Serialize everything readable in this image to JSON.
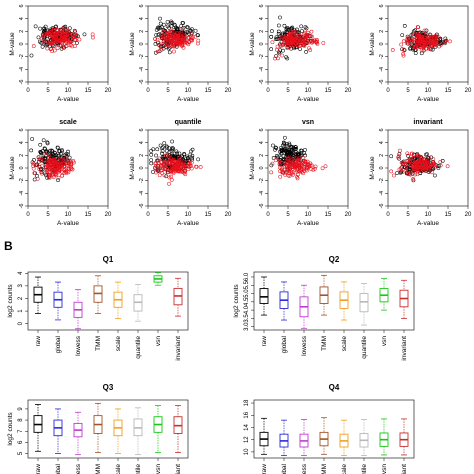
{
  "panel_b_label": "B",
  "colors": {
    "black": "#000000",
    "red": "#e8101c",
    "blue": "#2a2ad8",
    "magenta": "#c03cd0",
    "brown": "#a0542a",
    "orange": "#f0a020",
    "lightgray": "#b8b8b8",
    "green": "#18c818",
    "darkred": "#c83030"
  },
  "chart_data": [
    {
      "type": "scatter",
      "panel": 1,
      "title": "",
      "xlabel": "A-value",
      "ylabel": "M-value",
      "xlim": [
        0,
        20
      ],
      "ylim": [
        -6,
        6
      ],
      "xticks": [
        "0",
        "5",
        "10",
        "15",
        "20"
      ],
      "yticks": [
        "-6",
        "-4",
        "-2",
        "0",
        "2",
        "4",
        "6"
      ],
      "series": [
        {
          "color": "black",
          "center_x": 7,
          "spread_x": 4,
          "center_y": 1.2,
          "spread_y": 1.6
        },
        {
          "color": "red",
          "center_x": 8,
          "spread_x": 4,
          "center_y": 1.0,
          "spread_y": 1.4
        }
      ]
    },
    {
      "type": "scatter",
      "panel": 2,
      "title": "",
      "xlabel": "A-value",
      "ylabel": "M-value",
      "xlim": [
        0,
        20
      ],
      "ylim": [
        -6,
        6
      ],
      "xticks": [
        "0",
        "5",
        "10",
        "15",
        "20"
      ],
      "yticks": [
        "-6",
        "-4",
        "-2",
        "0",
        "2",
        "4",
        "6"
      ],
      "series": [
        {
          "color": "black",
          "center_x": 6,
          "spread_x": 4,
          "center_y": 1.5,
          "spread_y": 1.8
        },
        {
          "color": "red",
          "center_x": 7,
          "spread_x": 4,
          "center_y": 0.6,
          "spread_y": 1.4
        }
      ]
    },
    {
      "type": "scatter",
      "panel": 3,
      "title": "",
      "xlabel": "A-value",
      "ylabel": "M-value",
      "xlim": [
        0,
        20
      ],
      "ylim": [
        -6,
        6
      ],
      "xticks": [
        "0",
        "5",
        "10",
        "15",
        "20"
      ],
      "yticks": [
        "-6",
        "-4",
        "-2",
        "0",
        "2",
        "4",
        "6"
      ],
      "series": [
        {
          "color": "black",
          "center_x": 6,
          "spread_x": 4,
          "center_y": 1.0,
          "spread_y": 1.8
        },
        {
          "color": "red",
          "center_x": 7,
          "spread_x": 4,
          "center_y": 0.5,
          "spread_y": 1.4
        }
      ]
    },
    {
      "type": "scatter",
      "panel": 4,
      "title": "",
      "xlabel": "A-value",
      "ylabel": "M-value",
      "xlim": [
        0,
        20
      ],
      "ylim": [
        -6,
        6
      ],
      "xticks": [
        "0",
        "5",
        "10",
        "15",
        "20"
      ],
      "yticks": [
        "-6",
        "-4",
        "-2",
        "0",
        "2",
        "4",
        "6"
      ],
      "series": [
        {
          "color": "black",
          "center_x": 9,
          "spread_x": 4,
          "center_y": 0.5,
          "spread_y": 1.5
        },
        {
          "color": "red",
          "center_x": 9,
          "spread_x": 4,
          "center_y": 0.5,
          "spread_y": 1.5
        }
      ]
    },
    {
      "type": "scatter",
      "panel": 5,
      "title": "scale",
      "xlabel": "A-value",
      "ylabel": "M-value",
      "xlim": [
        0,
        20
      ],
      "ylim": [
        -6,
        6
      ],
      "xticks": [
        "0",
        "5",
        "10",
        "15",
        "20"
      ],
      "yticks": [
        "-6",
        "-4",
        "-2",
        "0",
        "2",
        "4",
        "6"
      ],
      "series": [
        {
          "color": "black",
          "center_x": 6,
          "spread_x": 4,
          "center_y": 1.5,
          "spread_y": 1.8
        },
        {
          "color": "red",
          "center_x": 7,
          "spread_x": 4,
          "center_y": 0.2,
          "spread_y": 1.4
        }
      ]
    },
    {
      "type": "scatter",
      "panel": 6,
      "title": "quantile",
      "xlabel": "A-value",
      "ylabel": "M-value",
      "xlim": [
        0,
        20
      ],
      "ylim": [
        -6,
        6
      ],
      "xticks": [
        "0",
        "5",
        "10",
        "15",
        "20"
      ],
      "yticks": [
        "-6",
        "-4",
        "-2",
        "0",
        "2",
        "4",
        "6"
      ],
      "series": [
        {
          "color": "black",
          "center_x": 6,
          "spread_x": 4,
          "center_y": 1.5,
          "spread_y": 1.8
        },
        {
          "color": "red",
          "center_x": 7,
          "spread_x": 4,
          "center_y": 0.2,
          "spread_y": 1.3
        }
      ]
    },
    {
      "type": "scatter",
      "panel": 7,
      "title": "vsn",
      "xlabel": "A-value",
      "ylabel": "M-value",
      "xlim": [
        0,
        20
      ],
      "ylim": [
        -6,
        6
      ],
      "xticks": [
        "0",
        "5",
        "10",
        "15",
        "20"
      ],
      "yticks": [
        "-6",
        "-4",
        "-2",
        "0",
        "2",
        "4",
        "6"
      ],
      "series": [
        {
          "color": "black",
          "center_x": 5,
          "spread_x": 3,
          "center_y": 2.0,
          "spread_y": 1.6
        },
        {
          "color": "red",
          "center_x": 7,
          "spread_x": 4,
          "center_y": 0.2,
          "spread_y": 1.2
        }
      ]
    },
    {
      "type": "scatter",
      "panel": 8,
      "title": "invariant",
      "xlabel": "A-value",
      "ylabel": "M-value",
      "xlim": [
        0,
        20
      ],
      "ylim": [
        -6,
        6
      ],
      "xticks": [
        "0",
        "5",
        "10",
        "15",
        "20"
      ],
      "yticks": [
        "-6",
        "-4",
        "-2",
        "0",
        "2",
        "4",
        "6"
      ],
      "series": [
        {
          "color": "black",
          "center_x": 8,
          "spread_x": 4,
          "center_y": 0.5,
          "spread_y": 1.5
        },
        {
          "color": "red",
          "center_x": 8,
          "spread_x": 4,
          "center_y": 0.5,
          "spread_y": 1.5
        }
      ]
    },
    {
      "type": "box",
      "panel": "Q1",
      "title": "Q1",
      "ylabel": "log2 counts",
      "categories": [
        "raw",
        "global",
        "lowess",
        "TMM",
        "scale",
        "quantile",
        "vsn",
        "invariant"
      ],
      "colors": [
        "black",
        "blue",
        "magenta",
        "brown",
        "orange",
        "lightgray",
        "green",
        "darkred"
      ],
      "ylim": [
        -0.5,
        4.1
      ],
      "yticks": [
        0,
        1,
        2,
        3,
        4
      ],
      "stats": [
        {
          "min": 0.8,
          "q1": 1.7,
          "median": 2.3,
          "q3": 2.9,
          "max": 3.7
        },
        {
          "min": 0.3,
          "q1": 1.3,
          "median": 1.9,
          "q3": 2.5,
          "max": 3.3
        },
        {
          "min": -0.4,
          "q1": 0.5,
          "median": 1.1,
          "q3": 1.7,
          "max": 2.7
        },
        {
          "min": 0.8,
          "q1": 1.7,
          "median": 2.4,
          "q3": 3.0,
          "max": 3.8
        },
        {
          "min": 0.4,
          "q1": 1.3,
          "median": 1.9,
          "q3": 2.5,
          "max": 3.3
        },
        {
          "min": 0.2,
          "q1": 1.0,
          "median": 1.7,
          "q3": 2.3,
          "max": 3.1
        },
        {
          "min": 3.05,
          "q1": 3.3,
          "median": 3.55,
          "q3": 3.8,
          "max": 4.05
        },
        {
          "min": 0.6,
          "q1": 1.5,
          "median": 2.2,
          "q3": 2.8,
          "max": 3.6
        }
      ]
    },
    {
      "type": "box",
      "panel": "Q2",
      "title": "Q2",
      "ylabel": "log2 counts",
      "categories": [
        "raw",
        "global",
        "lowess",
        "TMM",
        "scale",
        "quantile",
        "vsn",
        "invariant"
      ],
      "colors": [
        "black",
        "blue",
        "magenta",
        "brown",
        "orange",
        "lightgray",
        "green",
        "darkred"
      ],
      "ylim": [
        2.8,
        6.3
      ],
      "yticks": [
        3.0,
        3.5,
        4.0,
        4.5,
        5.0,
        5.5,
        6.0
      ],
      "tick_labels": [
        "3.0",
        "3.5",
        "4.0",
        "4.5",
        "5.0",
        "5.5",
        "6.0"
      ],
      "stats": [
        {
          "min": 3.7,
          "q1": 4.4,
          "median": 4.8,
          "q3": 5.3,
          "max": 6.0
        },
        {
          "min": 3.4,
          "q1": 4.1,
          "median": 4.6,
          "q3": 5.1,
          "max": 5.7
        },
        {
          "min": 2.9,
          "q1": 3.6,
          "median": 4.2,
          "q3": 4.8,
          "max": 5.5
        },
        {
          "min": 3.7,
          "q1": 4.4,
          "median": 4.9,
          "q3": 5.4,
          "max": 6.1
        },
        {
          "min": 3.4,
          "q1": 4.1,
          "median": 4.6,
          "q3": 5.1,
          "max": 5.7
        },
        {
          "min": 3.1,
          "q1": 3.9,
          "median": 4.5,
          "q3": 5.0,
          "max": 5.6
        },
        {
          "min": 4.0,
          "q1": 4.5,
          "median": 4.9,
          "q3": 5.3,
          "max": 5.9
        },
        {
          "min": 3.5,
          "q1": 4.2,
          "median": 4.7,
          "q3": 5.2,
          "max": 5.8
        }
      ]
    },
    {
      "type": "box",
      "panel": "Q3",
      "title": "Q3",
      "ylabel": "log2 counts",
      "categories": [
        "raw",
        "global",
        "lowess",
        "TMM",
        "scale",
        "quantile",
        "vsn",
        "invariant"
      ],
      "colors": [
        "black",
        "blue",
        "magenta",
        "brown",
        "orange",
        "lightgray",
        "green",
        "darkred"
      ],
      "ylim": [
        4.6,
        9.8
      ],
      "yticks": [
        5,
        6,
        7,
        8,
        9
      ],
      "stats": [
        {
          "min": 5.2,
          "q1": 6.9,
          "median": 7.6,
          "q3": 8.4,
          "max": 9.4
        },
        {
          "min": 5.0,
          "q1": 6.6,
          "median": 7.3,
          "q3": 8.0,
          "max": 9.0
        },
        {
          "min": 4.9,
          "q1": 6.5,
          "median": 7.1,
          "q3": 7.7,
          "max": 8.7
        },
        {
          "min": 5.1,
          "q1": 6.8,
          "median": 7.6,
          "q3": 8.4,
          "max": 9.5
        },
        {
          "min": 5.0,
          "q1": 6.6,
          "median": 7.3,
          "q3": 8.0,
          "max": 9.0
        },
        {
          "min": 4.9,
          "q1": 6.6,
          "median": 7.3,
          "q3": 8.1,
          "max": 9.1
        },
        {
          "min": 5.1,
          "q1": 6.9,
          "median": 7.6,
          "q3": 8.3,
          "max": 9.3
        },
        {
          "min": 5.1,
          "q1": 6.8,
          "median": 7.5,
          "q3": 8.3,
          "max": 9.3
        }
      ]
    },
    {
      "type": "box",
      "panel": "Q4",
      "title": "Q4",
      "ylabel": "",
      "categories": [
        "raw",
        "global",
        "lowess",
        "TMM",
        "scale",
        "quantile",
        "vsn",
        "invariant"
      ],
      "colors": [
        "black",
        "blue",
        "magenta",
        "brown",
        "orange",
        "lightgray",
        "green",
        "darkred"
      ],
      "ylim": [
        9.0,
        18.5
      ],
      "yticks": [
        10,
        12,
        14,
        16,
        18
      ],
      "stats": [
        {
          "min": 9.6,
          "q1": 11.0,
          "median": 12.1,
          "q3": 13.2,
          "max": 15.5
        },
        {
          "min": 9.4,
          "q1": 10.8,
          "median": 11.8,
          "q3": 12.9,
          "max": 15.2
        },
        {
          "min": 9.4,
          "q1": 10.8,
          "median": 11.8,
          "q3": 12.9,
          "max": 15.3
        },
        {
          "min": 9.6,
          "q1": 11.0,
          "median": 12.1,
          "q3": 13.2,
          "max": 15.6
        },
        {
          "min": 9.4,
          "q1": 10.8,
          "median": 11.8,
          "q3": 12.9,
          "max": 15.2
        },
        {
          "min": 9.4,
          "q1": 10.8,
          "median": 11.9,
          "q3": 13.0,
          "max": 15.3
        },
        {
          "min": 9.5,
          "q1": 10.9,
          "median": 12.0,
          "q3": 13.1,
          "max": 15.4
        },
        {
          "min": 9.5,
          "q1": 10.9,
          "median": 12.0,
          "q3": 13.1,
          "max": 15.4
        }
      ]
    }
  ]
}
